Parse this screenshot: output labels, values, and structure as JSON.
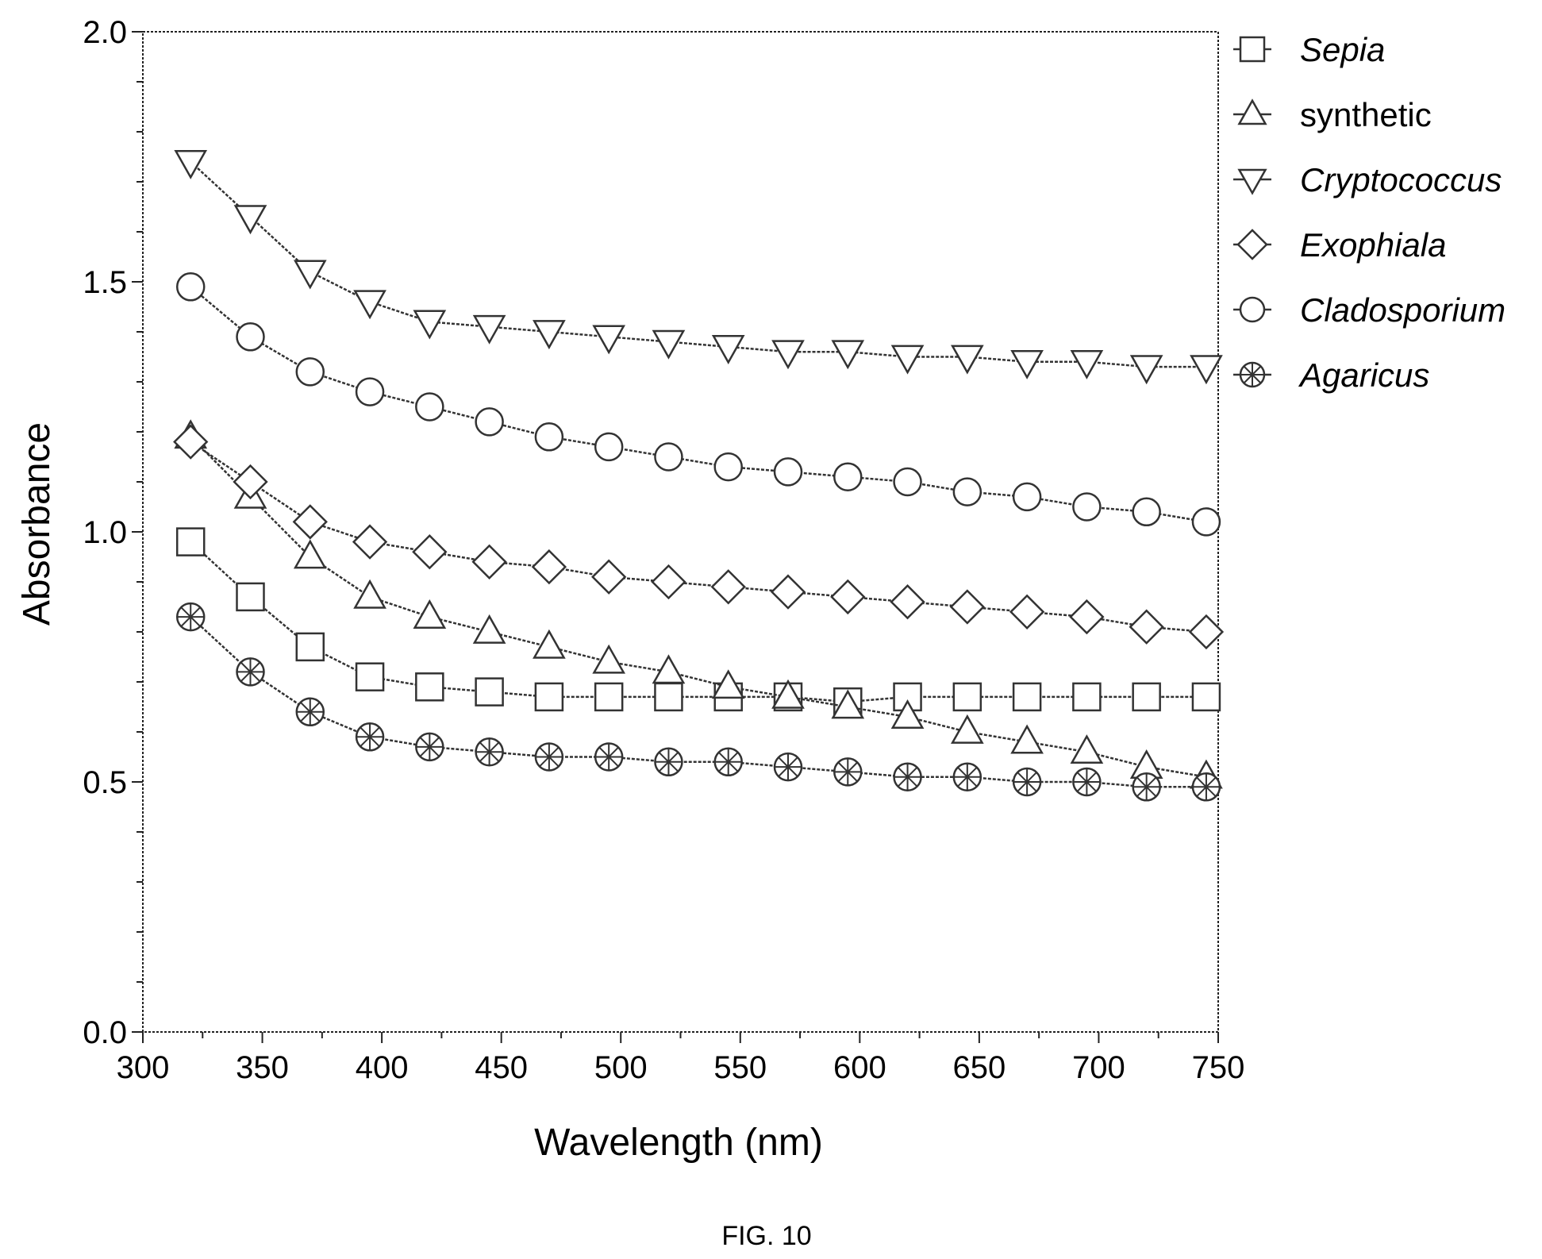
{
  "figure_caption": "FIG. 10",
  "chart_data": {
    "type": "line",
    "title": "",
    "xlabel": "Wavelength (nm)",
    "ylabel": "Absorbance",
    "xlim": [
      300,
      750
    ],
    "ylim": [
      0.0,
      2.0
    ],
    "x_ticks": [
      "300",
      "350",
      "400",
      "450",
      "500",
      "550",
      "600",
      "650",
      "700",
      "750"
    ],
    "y_ticks": [
      "0.0",
      "0.5",
      "1.0",
      "1.5",
      "2.0"
    ],
    "grid": false,
    "legend_position": "outside-right",
    "x": [
      320,
      345,
      370,
      395,
      420,
      445,
      470,
      495,
      520,
      545,
      570,
      595,
      620,
      645,
      670,
      695,
      720,
      745
    ],
    "series": [
      {
        "name": "Sepia",
        "italic": true,
        "marker": "square",
        "values": [
          0.98,
          0.87,
          0.77,
          0.71,
          0.69,
          0.68,
          0.67,
          0.67,
          0.67,
          0.67,
          0.67,
          0.66,
          0.67,
          0.67,
          0.67,
          0.67,
          0.67,
          0.67
        ]
      },
      {
        "name": "synthetic",
        "italic": false,
        "marker": "triangle-up",
        "values": [
          1.19,
          1.07,
          0.95,
          0.87,
          0.83,
          0.8,
          0.77,
          0.74,
          0.72,
          0.69,
          0.67,
          0.65,
          0.63,
          0.6,
          0.58,
          0.56,
          0.53,
          0.51
        ]
      },
      {
        "name": "Cryptococcus",
        "italic": true,
        "marker": "triangle-down",
        "values": [
          1.74,
          1.63,
          1.52,
          1.46,
          1.42,
          1.41,
          1.4,
          1.39,
          1.38,
          1.37,
          1.36,
          1.36,
          1.35,
          1.35,
          1.34,
          1.34,
          1.33,
          1.33
        ]
      },
      {
        "name": "Exophiala",
        "italic": true,
        "marker": "diamond",
        "values": [
          1.18,
          1.1,
          1.02,
          0.98,
          0.96,
          0.94,
          0.93,
          0.91,
          0.9,
          0.89,
          0.88,
          0.87,
          0.86,
          0.85,
          0.84,
          0.83,
          0.81,
          0.8
        ]
      },
      {
        "name": "Cladosporium",
        "italic": true,
        "marker": "circle",
        "values": [
          1.49,
          1.39,
          1.32,
          1.28,
          1.25,
          1.22,
          1.19,
          1.17,
          1.15,
          1.13,
          1.12,
          1.11,
          1.1,
          1.08,
          1.07,
          1.05,
          1.04,
          1.02
        ]
      },
      {
        "name": "Agaricus",
        "italic": true,
        "marker": "circle-cross",
        "values": [
          0.83,
          0.72,
          0.64,
          0.59,
          0.57,
          0.56,
          0.55,
          0.55,
          0.54,
          0.54,
          0.53,
          0.52,
          0.51,
          0.51,
          0.5,
          0.5,
          0.49,
          0.49
        ]
      }
    ],
    "line_color": "#333333",
    "marker_fill": "#ffffff"
  }
}
